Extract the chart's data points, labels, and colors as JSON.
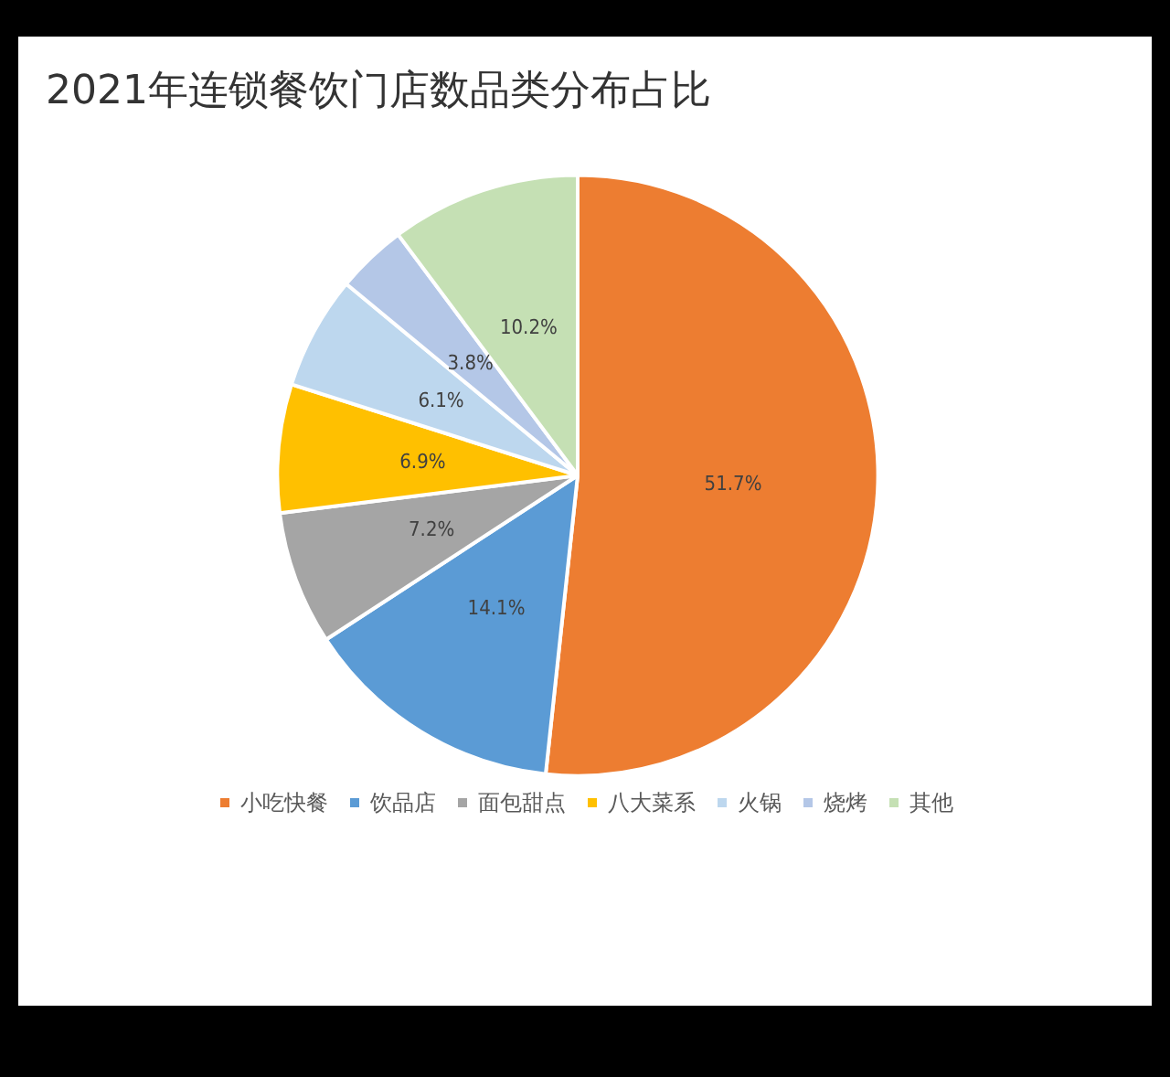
{
  "chart_data": {
    "type": "pie",
    "title": "2021年连锁餐饮门店数品类分布占比",
    "categories": [
      "小吃快餐",
      "饮品店",
      "面包甜点",
      "八大菜系",
      "火锅",
      "烧烤",
      "其他"
    ],
    "values": [
      51.7,
      14.1,
      7.2,
      6.9,
      6.1,
      3.8,
      10.2
    ],
    "colors": [
      "#ed7d31",
      "#5b9bd5",
      "#a5a5a5",
      "#ffc000",
      "#bdd7ee",
      "#b4c7e7",
      "#c5e0b4"
    ],
    "value_labels": [
      "51.7%",
      "14.1%",
      "7.2%",
      "6.9%",
      "6.1%",
      "3.8%",
      "10.2%"
    ],
    "legend": "bottom"
  }
}
